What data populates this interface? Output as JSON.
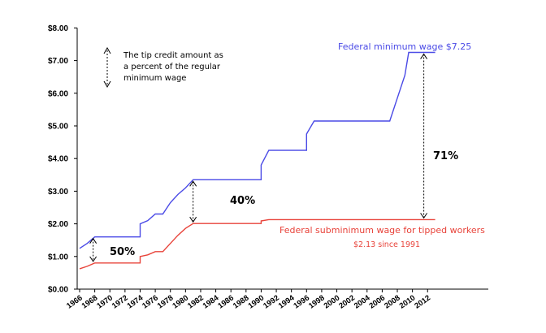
{
  "chart_data": {
    "type": "line",
    "title": "",
    "xlabel": "",
    "ylabel": "",
    "ylim": [
      0,
      8
    ],
    "y_ticks": [
      "$0.00",
      "$1.00",
      "$2.00",
      "$3.00",
      "$4.00",
      "$5.00",
      "$6.00",
      "$7.00",
      "$8.00"
    ],
    "x_ticks": [
      "1966",
      "1968",
      "1970",
      "1972",
      "1974",
      "1976",
      "1978",
      "1980",
      "1982",
      "1984",
      "1986",
      "1988",
      "1990",
      "1992",
      "1994",
      "1996",
      "1998",
      "2000",
      "2002",
      "2004",
      "2006",
      "2008",
      "2010",
      "2012"
    ],
    "grid": false,
    "colors": {
      "federal": "#4a4ae6",
      "tipped": "#e8433a",
      "axis": "#000000"
    },
    "series": [
      {
        "name": "Federal minimum wage",
        "color": "#4a4ae6",
        "points": [
          [
            1966,
            1.25
          ],
          [
            1967,
            1.4
          ],
          [
            1968,
            1.6
          ],
          [
            1974,
            1.6
          ],
          [
            1974,
            2.0
          ],
          [
            1975,
            2.1
          ],
          [
            1976,
            2.3
          ],
          [
            1977,
            2.3
          ],
          [
            1978,
            2.65
          ],
          [
            1979,
            2.9
          ],
          [
            1980,
            3.1
          ],
          [
            1981,
            3.35
          ],
          [
            1990,
            3.35
          ],
          [
            1990,
            3.8
          ],
          [
            1991,
            4.25
          ],
          [
            1996,
            4.25
          ],
          [
            1996,
            4.75
          ],
          [
            1997,
            5.15
          ],
          [
            2007,
            5.15
          ],
          [
            2008,
            5.85
          ],
          [
            2009,
            6.55
          ],
          [
            2009.5,
            7.25
          ],
          [
            2013,
            7.25
          ]
        ]
      },
      {
        "name": "Federal subminimum wage for tipped workers",
        "color": "#e8433a",
        "points": [
          [
            1966,
            0.625
          ],
          [
            1967,
            0.7
          ],
          [
            1968,
            0.8
          ],
          [
            1974,
            0.8
          ],
          [
            1974,
            1.0
          ],
          [
            1975,
            1.05
          ],
          [
            1976,
            1.15
          ],
          [
            1977,
            1.15
          ],
          [
            1978,
            1.4
          ],
          [
            1979,
            1.65
          ],
          [
            1980,
            1.86
          ],
          [
            1981,
            2.01
          ],
          [
            1990,
            2.01
          ],
          [
            1990,
            2.09
          ],
          [
            1991,
            2.13
          ],
          [
            2013,
            2.13
          ]
        ]
      }
    ],
    "labels": {
      "federal": "Federal minimum wage  $7.25",
      "tipped": "Federal subminimum wage for tipped workers",
      "tipped_sub": "$2.13 since 1991"
    },
    "annotations": [
      {
        "text": "50%",
        "year": 1968,
        "low": 0.8,
        "high": 1.6
      },
      {
        "text": "40%",
        "year": 1981,
        "low": 2.01,
        "high": 3.35
      },
      {
        "text": "71%",
        "year": 2011.5,
        "low": 2.13,
        "high": 7.25
      }
    ],
    "legend_note": [
      "The tip credit amount as",
      "a percent of the regular",
      "minimum wage"
    ]
  }
}
